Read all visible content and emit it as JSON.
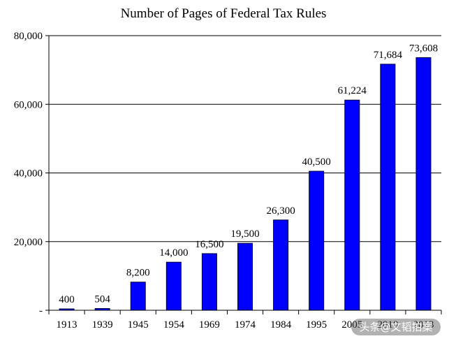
{
  "chart_data": {
    "type": "bar",
    "title": "Number of Pages of Federal Tax Rules",
    "xlabel": "",
    "ylabel": "",
    "categories": [
      "1913",
      "1939",
      "1945",
      "1954",
      "1969",
      "1974",
      "1984",
      "1995",
      "2005",
      "2010",
      "2013"
    ],
    "values": [
      400,
      504,
      8200,
      14000,
      16500,
      19500,
      26300,
      40500,
      61224,
      71684,
      73608
    ],
    "data_labels": [
      "400",
      "504",
      "8,200",
      "14,000",
      "16,500",
      "19,500",
      "26,300",
      "40,500",
      "61,224",
      "71,684",
      "73,608"
    ],
    "ylim": [
      0,
      80000
    ],
    "y_ticks": [
      0,
      20000,
      40000,
      60000,
      80000
    ],
    "y_tick_labels": [
      "-",
      "20,000",
      "40,000",
      "60,000",
      "80,000"
    ],
    "grid": true,
    "legend": "none",
    "bar_color": "#0000ff"
  },
  "watermark": {
    "text": "头条@文韬拍案"
  }
}
